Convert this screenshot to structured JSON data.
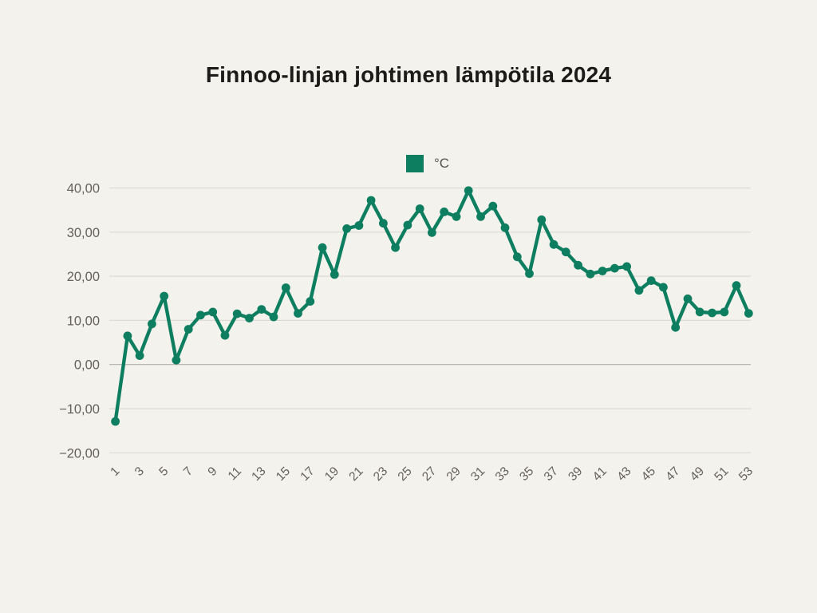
{
  "title": "Finnoo-linjan johtimen lämpötila 2024",
  "legend": {
    "label": "°C",
    "color": "#0e7e60"
  },
  "colors": {
    "background": "#f4f2ed",
    "title_text": "#1c1b19",
    "axis_label": "#64615a",
    "grid": "#dcdad5",
    "grid_zero": "#b2afa8",
    "line": "#0e7e60"
  },
  "chart_data": {
    "type": "line",
    "title": "Finnoo-linjan johtimen lämpötila 2024",
    "xlabel": "",
    "ylabel": "",
    "x": [
      1,
      2,
      3,
      4,
      5,
      6,
      7,
      8,
      9,
      10,
      11,
      12,
      13,
      14,
      15,
      16,
      17,
      18,
      19,
      20,
      21,
      22,
      23,
      24,
      25,
      26,
      27,
      28,
      29,
      30,
      31,
      32,
      33,
      34,
      35,
      36,
      37,
      38,
      39,
      40,
      41,
      42,
      43,
      44,
      45,
      46,
      47,
      48,
      49,
      50,
      51,
      52,
      53
    ],
    "series": [
      {
        "name": "°C",
        "color": "#0e7e60",
        "values": [
          -12.9,
          6.5,
          2.0,
          9.2,
          15.5,
          1.0,
          8.0,
          11.2,
          11.9,
          6.6,
          11.5,
          10.5,
          12.5,
          10.8,
          17.4,
          11.6,
          14.3,
          26.5,
          20.4,
          30.8,
          31.5,
          37.2,
          32.0,
          26.5,
          31.6,
          35.3,
          29.9,
          34.6,
          33.5,
          39.4,
          33.5,
          35.9,
          31.0,
          24.4,
          20.6,
          32.8,
          27.2,
          25.5,
          22.5,
          20.5,
          21.2,
          21.8,
          22.2,
          16.8,
          19.0,
          17.5,
          8.4,
          14.9,
          11.9,
          11.7,
          11.9,
          17.9,
          11.6
        ]
      }
    ],
    "x_tick_labels": [
      "1",
      "3",
      "5",
      "7",
      "9",
      "11",
      "13",
      "15",
      "17",
      "19",
      "21",
      "23",
      "25",
      "27",
      "29",
      "31",
      "33",
      "35",
      "37",
      "39",
      "41",
      "43",
      "45",
      "47",
      "49",
      "51",
      "53"
    ],
    "y_ticks": [
      {
        "value": 40,
        "label": "40,00"
      },
      {
        "value": 30,
        "label": "30,00"
      },
      {
        "value": 20,
        "label": "20,00"
      },
      {
        "value": 10,
        "label": "10,00"
      },
      {
        "value": 0,
        "label": "0,00"
      },
      {
        "value": -10,
        "label": "−10,00"
      },
      {
        "value": -20,
        "label": "−20,00"
      }
    ],
    "ylim": [
      -20,
      40
    ],
    "grid": "horizontal",
    "zero_line_emphasized": true,
    "legend_position": "top-center",
    "markers": "circle"
  }
}
